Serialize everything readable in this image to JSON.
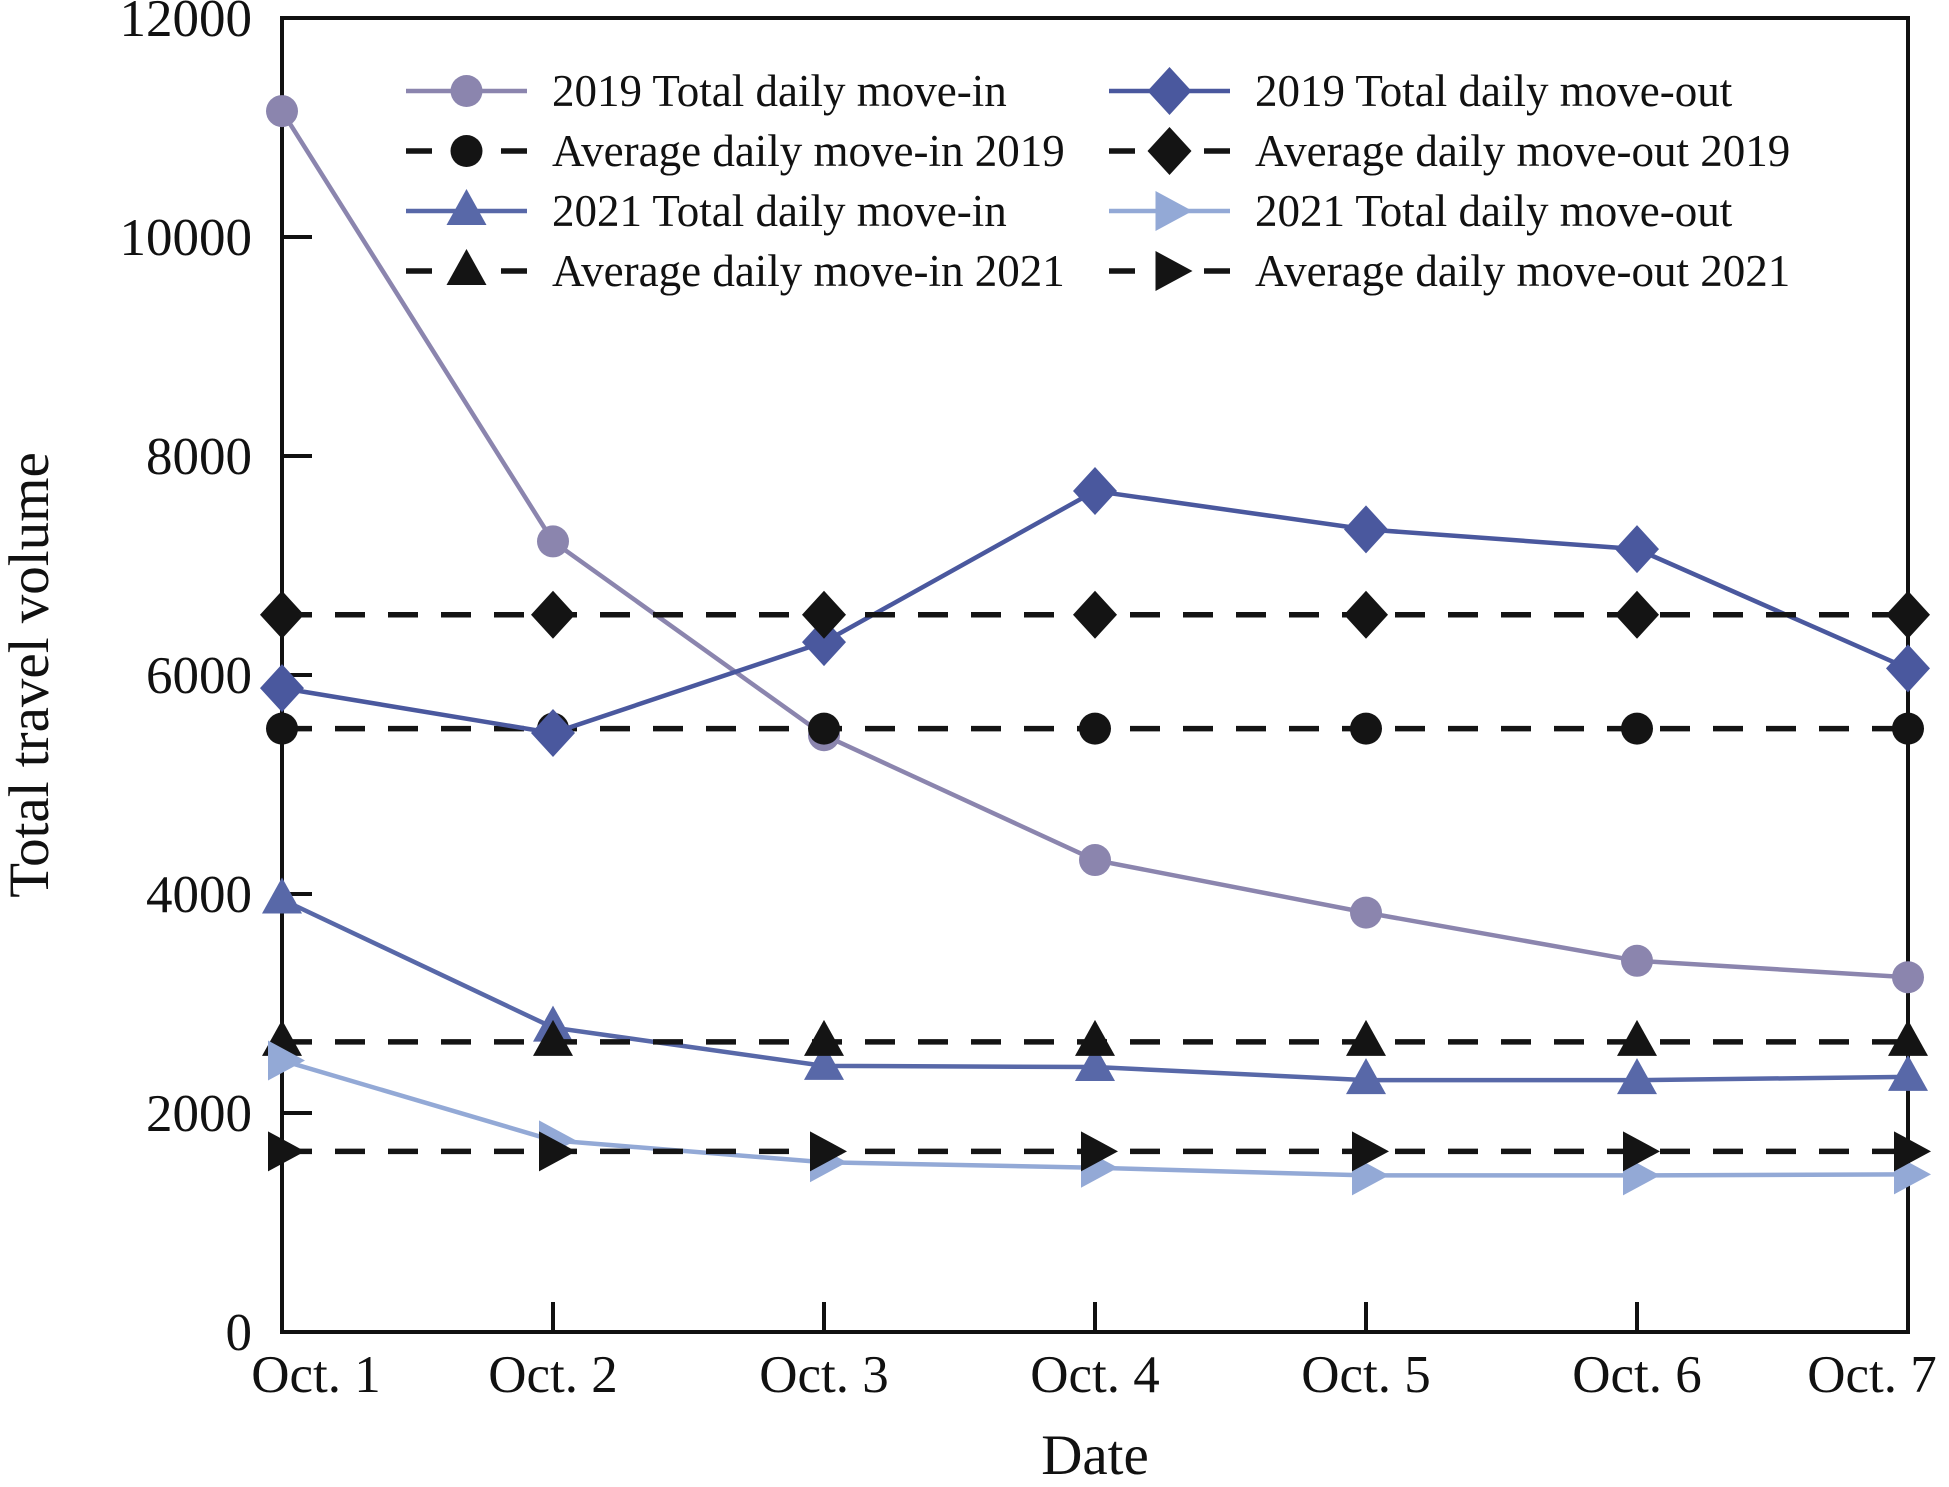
{
  "chart_data": {
    "type": "line",
    "title": "",
    "xlabel": "Date",
    "ylabel": "Total travel volume",
    "categories": [
      "Oct. 1",
      "Oct. 2",
      "Oct. 3",
      "Oct. 4",
      "Oct. 5",
      "Oct. 6",
      "Oct. 7"
    ],
    "ylim": [
      0,
      12000
    ],
    "yticks": [
      0,
      2000,
      4000,
      6000,
      8000,
      10000,
      12000
    ],
    "grid": false,
    "legend_position": "top-inside-two-columns",
    "axis_color": "#111111",
    "series": [
      {
        "name": "2019 Total daily move-in",
        "marker": "circle",
        "line": "solid",
        "color": "#8B85AE",
        "values": [
          11150,
          7220,
          5450,
          4310,
          3830,
          3390,
          3240
        ]
      },
      {
        "name": "Average daily move-in 2019",
        "marker": "circle",
        "line": "dashed",
        "color": "#141414",
        "values": [
          5510,
          5510,
          5510,
          5510,
          5510,
          5510,
          5510
        ]
      },
      {
        "name": "2021 Total daily move-in",
        "marker": "triangle-up",
        "line": "solid",
        "color": "#5868A8",
        "values": [
          3950,
          2780,
          2430,
          2420,
          2300,
          2300,
          2330
        ]
      },
      {
        "name": "Average daily move-in 2021",
        "marker": "triangle-up",
        "line": "dashed",
        "color": "#141414",
        "values": [
          2650,
          2650,
          2650,
          2650,
          2650,
          2650,
          2650
        ]
      },
      {
        "name": "2019 Total daily move-out",
        "marker": "diamond",
        "line": "solid",
        "color": "#4A589E",
        "values": [
          5880,
          5470,
          6300,
          7680,
          7330,
          7150,
          6060
        ]
      },
      {
        "name": "2021 Total daily move-out",
        "marker": "triangle-right",
        "line": "solid",
        "color": "#93A9D6",
        "values": [
          2480,
          1750,
          1550,
          1500,
          1430,
          1430,
          1440
        ]
      },
      {
        "name": "Average daily move-out 2019",
        "marker": "diamond",
        "line": "dashed",
        "color": "#141414",
        "values": [
          6550,
          6550,
          6550,
          6550,
          6550,
          6550,
          6550
        ]
      },
      {
        "name": "Average daily move-out 2021",
        "marker": "triangle-right",
        "line": "dashed",
        "color": "#141414",
        "values": [
          1650,
          1650,
          1650,
          1650,
          1650,
          1650,
          1650
        ]
      }
    ],
    "legend_columns": [
      [
        0,
        1,
        2,
        3
      ],
      [
        4,
        6,
        5,
        7
      ]
    ]
  }
}
